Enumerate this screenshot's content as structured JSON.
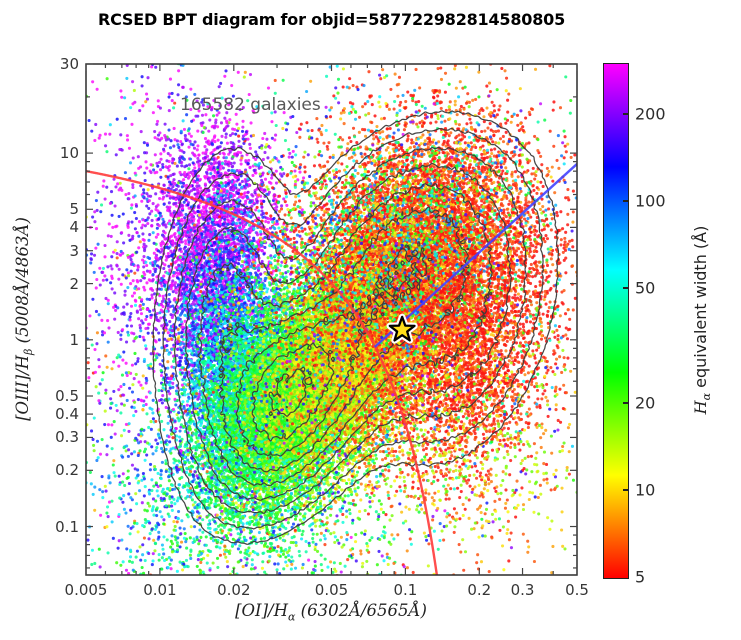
{
  "title": "RCSED BPT diagram for objid=587722982814580805",
  "annotation": "165582 galaxies",
  "colors": {
    "spine": "#2b2b2b",
    "tick": "#444444",
    "background": "#ffffff"
  },
  "chart_data": {
    "type": "scatter",
    "title": "RCSED BPT diagram for objid=587722982814580805",
    "annotation": "165582 galaxies",
    "n_galaxies": 165582,
    "xlabel": {
      "pre": "[OI]/H",
      "sub": "α",
      "post": " (6302Å/6565Å)"
    },
    "ylabel": {
      "pre": "[OIII]/H",
      "sub": "β",
      "post": " (5008Å/4863Å)"
    },
    "xscale": "log",
    "yscale": "log",
    "xlim": [
      0.005,
      0.5
    ],
    "ylim": [
      0.055,
      30
    ],
    "grid": false,
    "x_ticks": [
      {
        "v": 0.005,
        "label": "0.005"
      },
      {
        "v": 0.01,
        "label": "0.01"
      },
      {
        "v": 0.02,
        "label": "0.02"
      },
      {
        "v": 0.05,
        "label": "0.05"
      },
      {
        "v": 0.1,
        "label": "0.1"
      },
      {
        "v": 0.2,
        "label": "0.2"
      },
      {
        "v": 0.3,
        "label": "0.3"
      },
      {
        "v": 0.5,
        "label": "0.5"
      }
    ],
    "x_minor_ticks": [
      0.006,
      0.007,
      0.008,
      0.009,
      0.03,
      0.04,
      0.06,
      0.07,
      0.08,
      0.09,
      0.4
    ],
    "y_ticks": [
      {
        "v": 30,
        "label": "30"
      },
      {
        "v": 10,
        "label": "10"
      },
      {
        "v": 5,
        "label": "5"
      },
      {
        "v": 4,
        "label": "4"
      },
      {
        "v": 3,
        "label": "3"
      },
      {
        "v": 2,
        "label": "2"
      },
      {
        "v": 1,
        "label": "1"
      },
      {
        "v": 0.5,
        "label": "0.5"
      },
      {
        "v": 0.4,
        "label": "0.4"
      },
      {
        "v": 0.3,
        "label": "0.3"
      },
      {
        "v": 0.2,
        "label": "0.2"
      },
      {
        "v": 0.1,
        "label": "0.1"
      }
    ],
    "y_minor_ticks": [
      20,
      9,
      8,
      7,
      6,
      0.9,
      0.8,
      0.7,
      0.6,
      0.09,
      0.08,
      0.07,
      0.06
    ],
    "colorbar": {
      "label": {
        "pre": "H",
        "sub": "α",
        "post": " equivalent width (Å)"
      },
      "scale": "log",
      "range": [
        5,
        300
      ],
      "ticks": [
        {
          "v": 200,
          "label": "200"
        },
        {
          "v": 100,
          "label": "100"
        },
        {
          "v": 50,
          "label": "50"
        },
        {
          "v": 20,
          "label": "20"
        },
        {
          "v": 10,
          "label": "10"
        },
        {
          "v": 5,
          "label": "5"
        }
      ],
      "gradient_bottom_to_top": [
        {
          "pos": 0.0,
          "color": "#ff0000"
        },
        {
          "pos": 0.1,
          "color": "#ff8000"
        },
        {
          "pos": 0.2,
          "color": "#ffff00"
        },
        {
          "pos": 0.3,
          "color": "#80ff00"
        },
        {
          "pos": 0.4,
          "color": "#00ff00"
        },
        {
          "pos": 0.5,
          "color": "#00ff80"
        },
        {
          "pos": 0.6,
          "color": "#00ffff"
        },
        {
          "pos": 0.7,
          "color": "#0080ff"
        },
        {
          "pos": 0.8,
          "color": "#0000ff"
        },
        {
          "pos": 0.9,
          "color": "#8000ff"
        },
        {
          "pos": 1.0,
          "color": "#ff00ff"
        }
      ]
    },
    "star_marker": {
      "x": 0.097,
      "y": 1.13,
      "fill": "#ffdf1a",
      "edge": "#000000",
      "halo": "#ffffff"
    },
    "demarcation_lines": {
      "kewley01_OI": {
        "form": "logy = a/(logx + b) + c",
        "a": 0.73,
        "b": 0.59,
        "c": 1.33,
        "color": "#ff3b3b"
      },
      "schawinski07": {
        "form": "logy = intercept + slope*logx",
        "slope": 1.19,
        "intercept": 1.3,
        "xlog_range": [
          -1.125,
          -0.301
        ],
        "color": "#4343ff"
      }
    },
    "scatter_clusters": [
      {
        "xc": -1.78,
        "yc": 0.55,
        "sx": 0.13,
        "sy": 0.3,
        "rho": 0.1,
        "n": 2600,
        "ew": [
          "n",
          2.42,
          0.18
        ]
      },
      {
        "xc": -1.74,
        "yc": 0.05,
        "sx": 0.11,
        "sy": 0.3,
        "rho": 0.1,
        "n": 2400,
        "ew": [
          "n",
          2.02,
          0.18
        ]
      },
      {
        "xc": -1.63,
        "yc": -0.3,
        "sx": 0.13,
        "sy": 0.25,
        "rho": 0.2,
        "n": 2600,
        "ew": [
          "n",
          1.75,
          0.15
        ]
      },
      {
        "xc": -1.5,
        "yc": -0.35,
        "sx": 0.16,
        "sy": 0.28,
        "rho": 0.35,
        "n": 6500,
        "ew": [
          "n",
          1.52,
          0.14
        ]
      },
      {
        "xc": -1.36,
        "yc": -0.22,
        "sx": 0.16,
        "sy": 0.3,
        "rho": 0.45,
        "n": 5200,
        "ew": [
          "n",
          1.32,
          0.13
        ]
      },
      {
        "xc": -1.22,
        "yc": -0.05,
        "sx": 0.17,
        "sy": 0.33,
        "rho": 0.5,
        "n": 4200,
        "ew": [
          "n",
          1.1,
          0.13
        ]
      },
      {
        "xc": -1.05,
        "yc": 0.15,
        "sx": 0.18,
        "sy": 0.35,
        "rho": 0.35,
        "n": 4200,
        "ew": [
          "n",
          0.92,
          0.12
        ]
      },
      {
        "xc": -0.95,
        "yc": 0.55,
        "sx": 0.25,
        "sy": 0.33,
        "rho": 0.2,
        "n": 5200,
        "ew": [
          "n",
          0.74,
          0.1
        ]
      },
      {
        "xc": -1.0,
        "yc": 0.5,
        "sx": 0.25,
        "sy": 0.3,
        "rho": 0.2,
        "n": 1800,
        "ew": [
          "u",
          0.9,
          2.05
        ]
      },
      {
        "xc": -0.74,
        "yc": 0.0,
        "sx": 0.18,
        "sy": 0.35,
        "rho": 0.25,
        "n": 3000,
        "ew": [
          "n",
          0.72,
          0.09
        ]
      },
      {
        "xc": -1.35,
        "yc": 0.1,
        "sx": 0.55,
        "sy": 0.75,
        "rho": 0.2,
        "n": 2200,
        "ew": [
          "u",
          0.7,
          2.45
        ]
      },
      {
        "xc": -2.05,
        "yc": 0.45,
        "sx": 0.16,
        "sy": 0.55,
        "rho": 0.0,
        "n": 700,
        "ew": [
          "n",
          2.35,
          0.22
        ]
      },
      {
        "xc": -1.55,
        "yc": -1.0,
        "sx": 0.25,
        "sy": 0.25,
        "rho": 0.2,
        "n": 600,
        "ew": [
          "n",
          1.55,
          0.35
        ]
      },
      {
        "xc": -1.95,
        "yc": -0.8,
        "sx": 0.18,
        "sy": 0.35,
        "rho": 0.0,
        "n": 500,
        "ew": [
          "n",
          1.8,
          0.3
        ]
      },
      {
        "xc": -0.75,
        "yc": -0.55,
        "sx": 0.25,
        "sy": 0.35,
        "rho": 0.1,
        "n": 700,
        "ew": [
          "u",
          0.75,
          1.3
        ]
      }
    ],
    "contours": {
      "color": "#3a3a3a",
      "levels_rel": [
        0.045,
        0.08,
        0.135,
        0.205,
        0.3,
        0.42,
        0.56,
        0.72,
        0.88
      ],
      "components": [
        {
          "xc": -1.74,
          "yc": 0.1,
          "sx": 0.14,
          "sy": 0.45,
          "rho": 0.15,
          "w": 0.85
        },
        {
          "xc": -1.5,
          "yc": -0.32,
          "sx": 0.155,
          "sy": 0.3,
          "rho": 0.35,
          "w": 1.5
        },
        {
          "xc": -1.28,
          "yc": -0.12,
          "sx": 0.22,
          "sy": 0.38,
          "rho": 0.55,
          "w": 0.9
        },
        {
          "xc": -0.97,
          "yc": 0.52,
          "sx": 0.24,
          "sy": 0.33,
          "rho": 0.25,
          "w": 0.95
        },
        {
          "xc": -0.78,
          "yc": 0.05,
          "sx": 0.2,
          "sy": 0.38,
          "rho": 0.3,
          "w": 0.6
        }
      ]
    }
  }
}
